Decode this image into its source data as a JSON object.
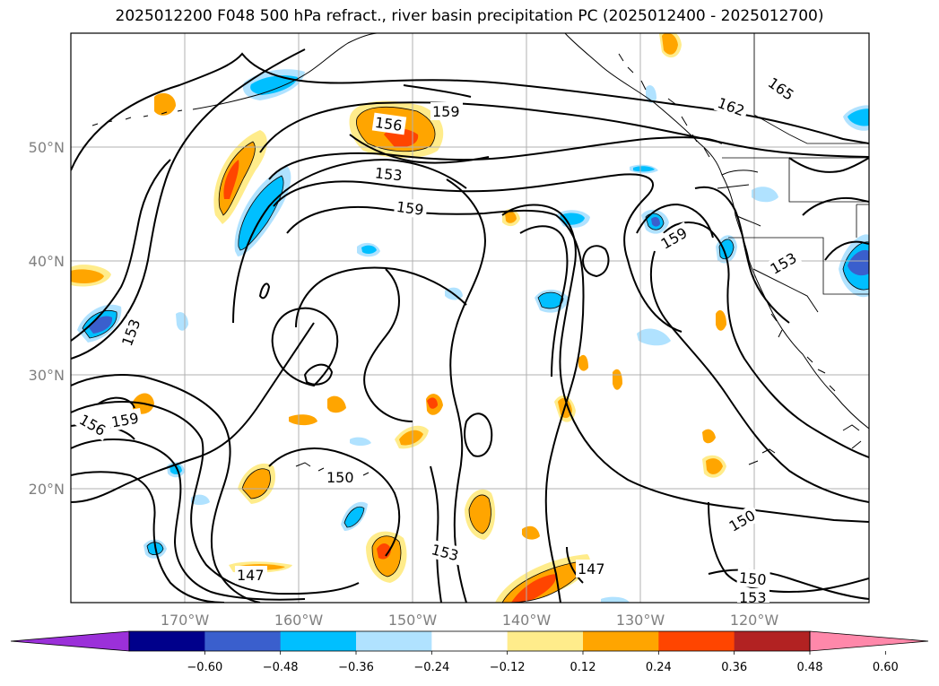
{
  "title": "2025012200 F048 500 hPa refract., river basin precipitation PC (2025012400 - 2025012700)",
  "lat_labels": [
    "50°N",
    "40°N",
    "30°N",
    "20°N"
  ],
  "lon_labels": [
    "170°W",
    "160°W",
    "150°W",
    "140°W",
    "130°W",
    "120°W"
  ],
  "contour_labels": [
    "165",
    "162",
    "159",
    "156",
    "153",
    "159",
    "159",
    "153",
    "153",
    "156",
    "159",
    "150",
    "147",
    "153",
    "147",
    "150",
    "150",
    "153"
  ],
  "colorbar": {
    "colors": [
      "#9b30d9",
      "#00008b",
      "#3a5fcd",
      "#00bfff",
      "#b0e2ff",
      "#ffffff",
      "#ffec8b",
      "#ffa500",
      "#ff4500",
      "#b22222",
      "#ff88aa"
    ],
    "tick_labels": [
      "−0.60",
      "−0.48",
      "−0.36",
      "−0.24",
      "−0.12",
      "0.12",
      "0.24",
      "0.36",
      "0.48",
      "0.60"
    ]
  }
}
